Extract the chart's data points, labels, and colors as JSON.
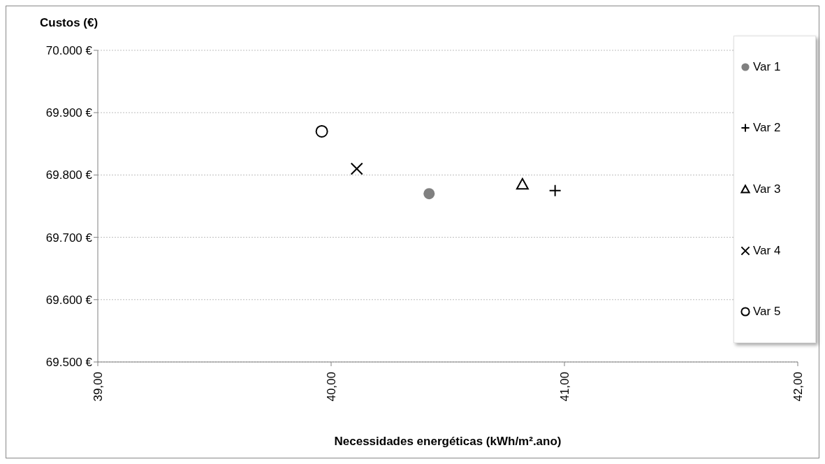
{
  "chart_data": {
    "type": "scatter",
    "xlabel": "Necessidades energéticas (kWh/m².ano)",
    "ylabel": "Custos (€)",
    "xlim": [
      39,
      42
    ],
    "xticks": [
      {
        "value": 39,
        "label": "39,00"
      },
      {
        "value": 40,
        "label": "40,00"
      },
      {
        "value": 41,
        "label": "41,00"
      },
      {
        "value": 42,
        "label": "42,00"
      }
    ],
    "ylim": [
      69500,
      70000
    ],
    "yticks": [
      {
        "value": 69500,
        "label": "69.500 €"
      },
      {
        "value": 69600,
        "label": "69.600 €"
      },
      {
        "value": 69700,
        "label": "69.700 €"
      },
      {
        "value": 69800,
        "label": "69.800 €"
      },
      {
        "value": 69900,
        "label": "69.900 €"
      },
      {
        "value": 70000,
        "label": "70.000 €"
      }
    ],
    "grid": "y",
    "legend": "right",
    "series": [
      {
        "name": "Var 1",
        "color": "#808080",
        "marker": "circle",
        "x": [
          40.42
        ],
        "values": [
          69770
        ]
      },
      {
        "name": "Var 2",
        "color": "#000000",
        "marker": "plus",
        "x": [
          40.96
        ],
        "values": [
          69775
        ]
      },
      {
        "name": "Var 3",
        "color": "#000000",
        "marker": "triangle",
        "x": [
          40.82
        ],
        "values": [
          69785
        ]
      },
      {
        "name": "Var 4",
        "color": "#000000",
        "marker": "cross",
        "x": [
          40.11
        ],
        "values": [
          69810
        ]
      },
      {
        "name": "Var 5",
        "color": "#000000",
        "marker": "circle-open",
        "x": [
          39.96
        ],
        "values": [
          69870
        ]
      }
    ]
  }
}
